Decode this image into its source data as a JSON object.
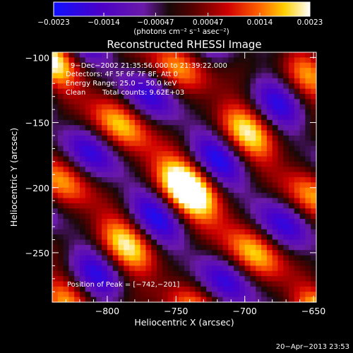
{
  "chart_data": {
    "type": "heatmap",
    "title": "Reconstructed RHESSI Image",
    "xlabel": "Heliocentric X (arcsec)",
    "ylabel": "Heliocentric Y (arcsec)",
    "xlim": [
      -840,
      -648
    ],
    "ylim": [
      -288,
      -96
    ],
    "x_ticks": [
      -800,
      -750,
      -700,
      -650
    ],
    "y_ticks": [
      -100,
      -150,
      -200,
      -250
    ],
    "x_tick_labels": [
      "−800",
      "−750",
      "−700",
      "−650"
    ],
    "y_tick_labels": [
      "−100",
      "−150",
      "−200",
      "−250"
    ],
    "colorbar": {
      "min": -0.0023,
      "max": 0.0023,
      "tick_labels": [
        "−0.0023",
        "−0.0014",
        "−0.00047",
        "0.00047",
        "0.0014",
        "0.0023"
      ],
      "unit_label": "(photons cm⁻² s⁻¹ asec⁻²)"
    },
    "annotations": {
      "time_range": "9−Dec−2002 21:35:56.000 to 21:39:22.000",
      "detectors": "Detectors: 4F 5F 6F 7F 8F, Att 0",
      "energy_range": "Energy Range: 25.0 − 50.0 keV",
      "clean_label": "Clean",
      "total_counts": "Total counts: 9.62E+03",
      "peak_position": "Position of Peak = [−742,−201]"
    },
    "peak": {
      "x": -742,
      "y": -201
    },
    "timestamp": "20−Apr−2013 23:53"
  }
}
